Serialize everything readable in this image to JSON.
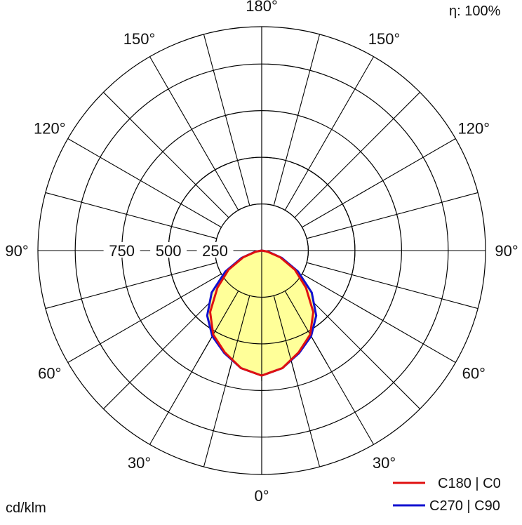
{
  "chart_data": {
    "type": "polar",
    "efficiency_label": "η: 100%",
    "unit_label": "cd/klm",
    "radial_ticks": [
      250,
      500,
      750
    ],
    "rmax": 1200,
    "angle_labels": {
      "bottom": "0°",
      "top": "180°",
      "left_mid": "90°",
      "right_mid": "90°",
      "left": [
        "30°",
        "60°",
        "120°",
        "150°"
      ],
      "right": [
        "30°",
        "60°",
        "120°",
        "150°"
      ]
    },
    "colors": {
      "c0": "#e01010",
      "c90": "#1010d0",
      "fill": "#ffff99"
    },
    "series": [
      {
        "name": "C180 | C0",
        "color": "#e01010",
        "gamma": [
          0,
          10,
          20,
          30,
          40,
          50,
          60,
          70,
          80,
          90
        ],
        "intensity": [
          670,
          640,
          580,
          520,
          430,
          310,
          205,
          105,
          30,
          0
        ]
      },
      {
        "name": "C270 | C90",
        "color": "#1010d0",
        "gamma": [
          0,
          10,
          20,
          30,
          40,
          50,
          60,
          70,
          80,
          90
        ],
        "intensity": [
          670,
          640,
          585,
          530,
          455,
          350,
          225,
          115,
          35,
          0
        ]
      }
    ]
  }
}
